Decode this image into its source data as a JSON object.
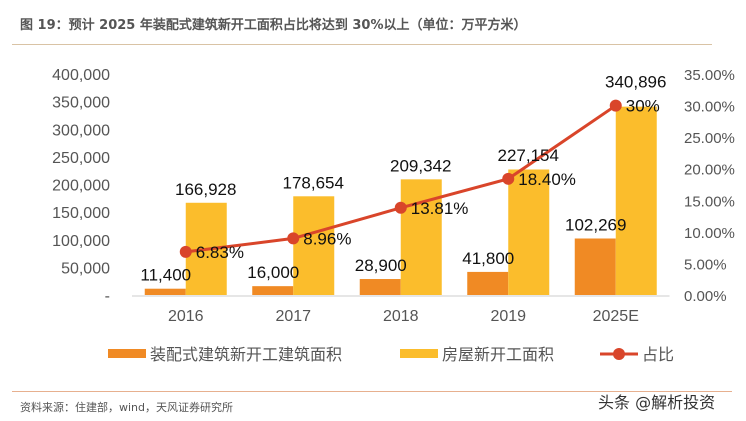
{
  "title": "图 19：预计  2025 年装配式建筑新开工面积占比将达到 30%以上（单位：万平方米）",
  "source": "资料来源：住建部，wind，天风证券研究所",
  "watermark": "头条 @解析投资",
  "chart_data": {
    "type": "bar",
    "categories": [
      "2016",
      "2017",
      "2018",
      "2019",
      "2025E"
    ],
    "series": [
      {
        "name": "装配式建筑新开工建筑面积",
        "type": "bar",
        "axis": "left",
        "color": "#f08a24",
        "values": [
          11400,
          16000,
          28900,
          41800,
          102269
        ],
        "labels": [
          "11,400",
          "16,000",
          "28,900",
          "41,800",
          "102,269"
        ]
      },
      {
        "name": "房屋新开工面积",
        "type": "bar",
        "axis": "left",
        "color": "#fbbd2c",
        "values": [
          166928,
          178654,
          209342,
          227154,
          340896
        ],
        "labels": [
          "166,928",
          "178,654",
          "209,342",
          "227,154",
          "340,896"
        ]
      },
      {
        "name": "占比",
        "type": "line",
        "axis": "right",
        "color": "#d9452a",
        "values": [
          6.83,
          8.96,
          13.81,
          18.4,
          30
        ],
        "labels": [
          "6.83%",
          "8.96%",
          "13.81%",
          "18.40%",
          "30%"
        ]
      }
    ],
    "left_axis": {
      "ylim": [
        0,
        400000
      ],
      "ticks": [
        "-",
        "50,000",
        "100,000",
        "150,000",
        "200,000",
        "250,000",
        "300,000",
        "350,000",
        "400,000"
      ]
    },
    "right_axis": {
      "ylim": [
        0,
        35
      ],
      "ticks": [
        "0.00%",
        "5.00%",
        "10.00%",
        "15.00%",
        "20.00%",
        "25.00%",
        "30.00%",
        "35.00%"
      ]
    },
    "legend": "bottom",
    "grid": false
  }
}
